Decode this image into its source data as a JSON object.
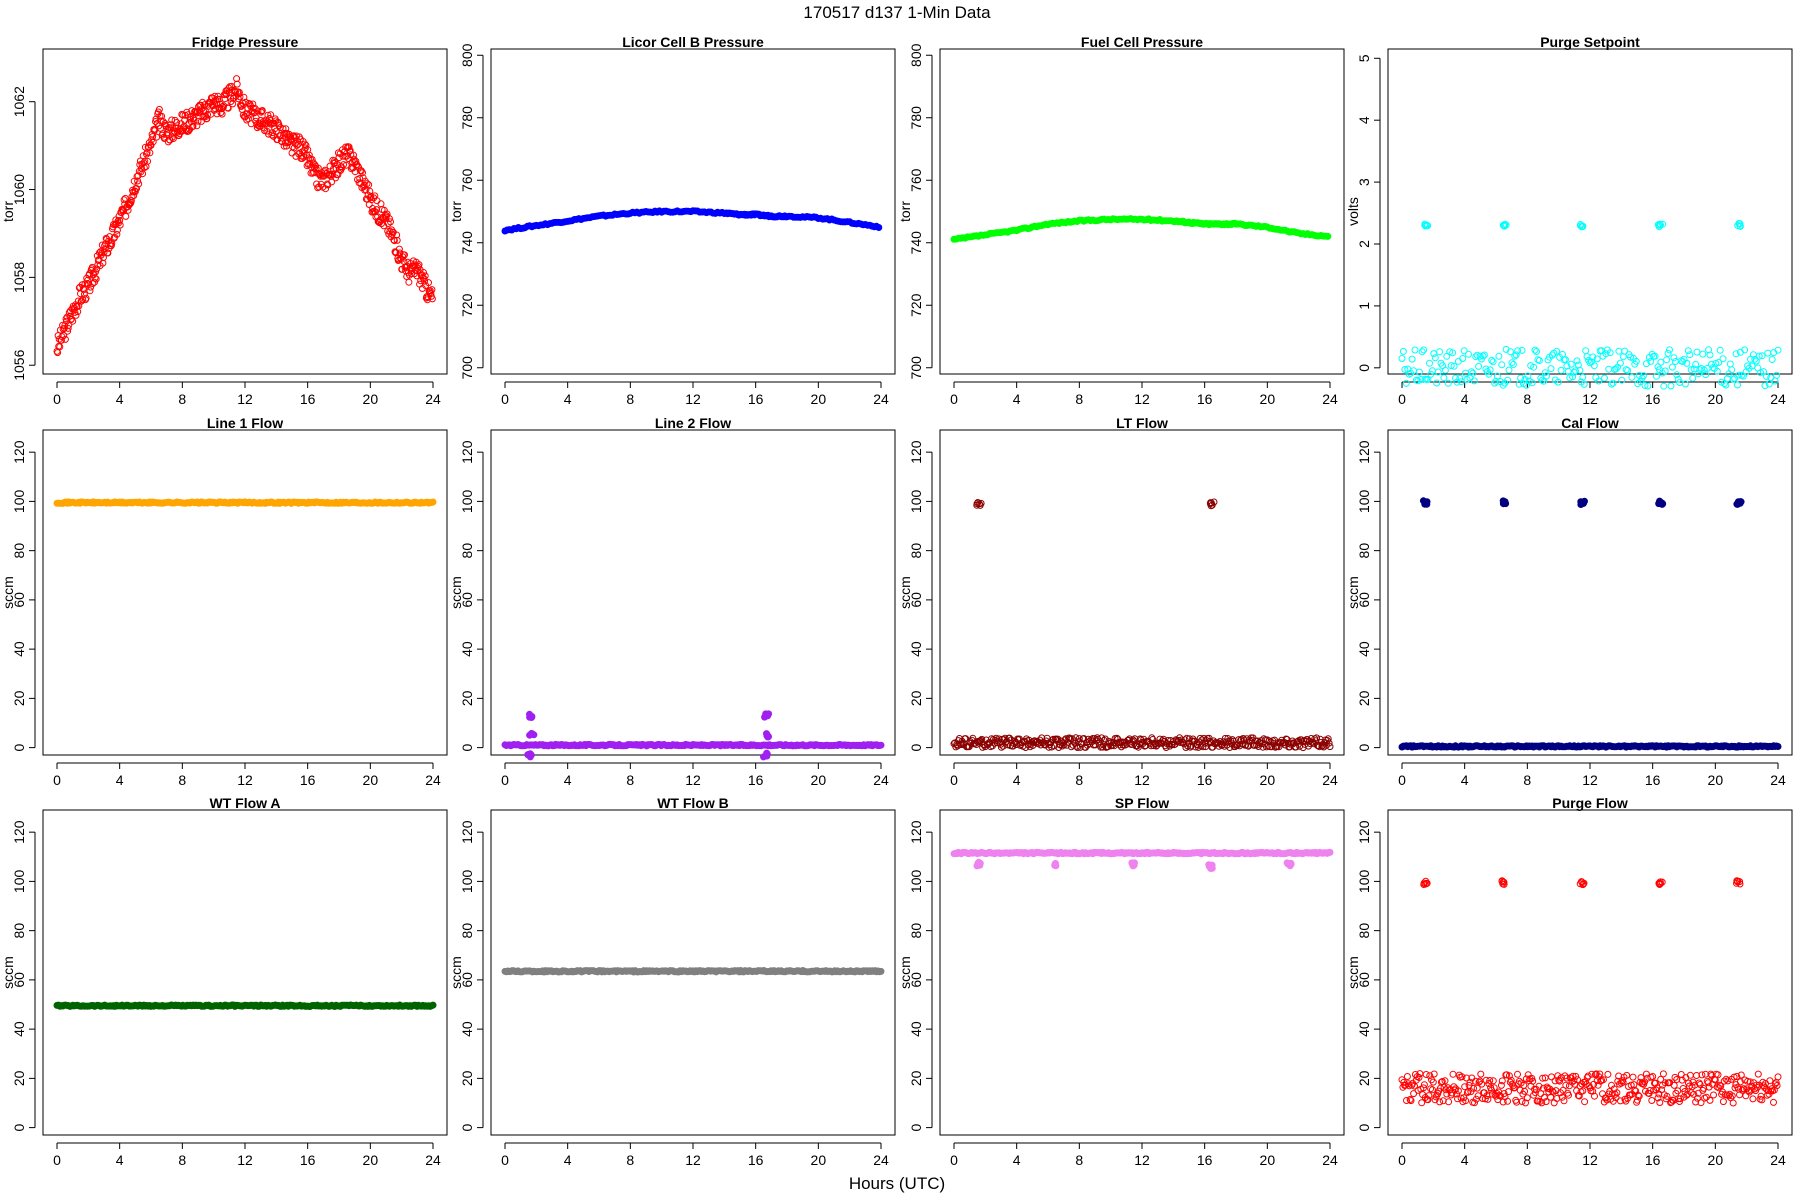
{
  "figure": {
    "title": "170517   d137   1-Min Data",
    "xlabel": "Hours (UTC)"
  },
  "chart_data": [
    {
      "type": "scatter",
      "title": "Fridge Pressure",
      "ylabel": "torr",
      "color": "#ff0000",
      "filled": false,
      "xlim": [
        0,
        24
      ],
      "ylim": [
        1055.8,
        1063.2
      ],
      "xticks": [
        0,
        4,
        8,
        12,
        16,
        20,
        24
      ],
      "yticks": [
        1056,
        1058,
        1060,
        1062
      ],
      "series": [
        {
          "x": [
            0,
            0.5,
            1,
            1.5,
            2,
            2.5,
            3,
            3.5,
            4,
            4.5,
            5,
            5.5,
            6,
            6.5,
            7,
            7.5,
            8,
            8.5,
            9,
            9.5,
            10,
            10.5,
            11,
            11.5,
            12,
            12.5,
            13,
            13.5,
            14,
            14.5,
            15,
            15.5,
            16,
            16.5,
            17,
            17.5,
            18,
            18.5,
            19,
            19.5,
            20,
            20.5,
            21,
            21.5,
            22,
            22.5,
            23,
            23.5,
            24
          ],
          "y": [
            1056.4,
            1056.8,
            1057.2,
            1057.6,
            1057.8,
            1058.2,
            1058.6,
            1058.9,
            1059.3,
            1059.7,
            1060.2,
            1060.6,
            1061.0,
            1061.6,
            1061.3,
            1061.4,
            1061.5,
            1061.6,
            1061.7,
            1061.8,
            1062.0,
            1061.9,
            1062.1,
            1062.3,
            1061.8,
            1061.7,
            1061.6,
            1061.5,
            1061.4,
            1061.2,
            1061.0,
            1061.0,
            1060.7,
            1060.3,
            1060.2,
            1060.4,
            1060.6,
            1060.8,
            1060.6,
            1060.2,
            1059.8,
            1059.5,
            1059.3,
            1058.9,
            1058.4,
            1058.1,
            1058.2,
            1057.8,
            1057.5
          ]
        }
      ]
    },
    {
      "type": "scatter",
      "title": "Licor Cell B Pressure",
      "ylabel": "torr",
      "color": "#0000ff",
      "filled": true,
      "xlim": [
        0,
        24
      ],
      "ylim": [
        698,
        802
      ],
      "xticks": [
        0,
        4,
        8,
        12,
        16,
        20,
        24
      ],
      "yticks": [
        700,
        720,
        740,
        760,
        780,
        800
      ],
      "series": [
        {
          "x": [
            0,
            2,
            4,
            6,
            8,
            10,
            12,
            14,
            15,
            16,
            17,
            18,
            20,
            22,
            24
          ],
          "y": [
            744,
            745.5,
            747,
            748.5,
            749.5,
            750,
            750,
            749.5,
            749,
            749,
            748.5,
            748.5,
            748,
            746.5,
            745
          ]
        }
      ]
    },
    {
      "type": "scatter",
      "title": "Fuel Cell Pressure",
      "ylabel": "torr",
      "color": "#00ff00",
      "filled": true,
      "xlim": [
        0,
        24
      ],
      "ylim": [
        698,
        802
      ],
      "xticks": [
        0,
        4,
        8,
        12,
        16,
        20,
        24
      ],
      "yticks": [
        700,
        720,
        740,
        760,
        780,
        800
      ],
      "series": [
        {
          "x": [
            0,
            2,
            4,
            6,
            8,
            10,
            12,
            14,
            15,
            16,
            17,
            18,
            20,
            22,
            24
          ],
          "y": [
            741,
            742.5,
            744,
            746,
            747,
            747.5,
            747.5,
            747,
            746.5,
            746,
            746,
            746,
            745,
            743,
            742
          ]
        }
      ]
    },
    {
      "type": "scatter",
      "title": "Purge Setpoint",
      "ylabel": "volts",
      "color": "#00ffff",
      "filled": false,
      "xlim": [
        0,
        24
      ],
      "ylim": [
        -0.1,
        5.15
      ],
      "xticks": [
        0,
        4,
        8,
        12,
        16,
        20,
        24
      ],
      "yticks": [
        0,
        1,
        2,
        3,
        4,
        5
      ],
      "series": [
        {
          "x": [
            1.5,
            6.5,
            11.5,
            16.5,
            21.5
          ],
          "y": [
            2.3,
            2.3,
            2.3,
            2.3,
            2.3
          ]
        },
        {
          "x": [
            0,
            24
          ],
          "y": [
            0,
            0
          ],
          "baseline": true
        }
      ]
    },
    {
      "type": "scatter",
      "title": "Line 1 Flow",
      "ylabel": "sccm",
      "color": "#ffa500",
      "filled": true,
      "xlim": [
        0,
        24
      ],
      "ylim": [
        -3,
        129
      ],
      "xticks": [
        0,
        4,
        8,
        12,
        16,
        20,
        24
      ],
      "yticks": [
        0,
        20,
        40,
        60,
        80,
        100,
        120
      ],
      "series": [
        {
          "x": [
            0,
            24
          ],
          "y": [
            99.5,
            99.5
          ],
          "baseline": true
        }
      ]
    },
    {
      "type": "scatter",
      "title": "Line 2 Flow",
      "ylabel": "sccm",
      "color": "#a020f0",
      "filled": true,
      "xlim": [
        0,
        24
      ],
      "ylim": [
        -3,
        129
      ],
      "xticks": [
        0,
        4,
        8,
        12,
        16,
        20,
        24
      ],
      "yticks": [
        0,
        20,
        40,
        60,
        80,
        100,
        120
      ],
      "series": [
        {
          "x": [
            0,
            24
          ],
          "y": [
            1,
            1
          ],
          "baseline": true
        },
        {
          "x": [
            1.7,
            1.7,
            1.6,
            16.7,
            16.8,
            16.6
          ],
          "y": [
            13,
            5,
            -3,
            13,
            5,
            -3
          ]
        }
      ]
    },
    {
      "type": "scatter",
      "title": "LT Flow",
      "ylabel": "sccm",
      "color": "#8b0000",
      "filled": false,
      "xlim": [
        0,
        24
      ],
      "ylim": [
        -3,
        129
      ],
      "xticks": [
        0,
        4,
        8,
        12,
        16,
        20,
        24
      ],
      "yticks": [
        0,
        20,
        40,
        60,
        80,
        100,
        120
      ],
      "series": [
        {
          "x": [
            0,
            24
          ],
          "y": [
            1.5,
            1.5
          ],
          "baseline": true,
          "band": [
            0,
            4
          ]
        },
        {
          "x": [
            1.6,
            16.5
          ],
          "y": [
            99,
            99
          ]
        }
      ]
    },
    {
      "type": "scatter",
      "title": "Cal Flow",
      "ylabel": "sccm",
      "color": "#000080",
      "filled": true,
      "xlim": [
        0,
        24
      ],
      "ylim": [
        -3,
        129
      ],
      "xticks": [
        0,
        4,
        8,
        12,
        16,
        20,
        24
      ],
      "yticks": [
        0,
        20,
        40,
        60,
        80,
        100,
        120
      ],
      "series": [
        {
          "x": [
            0,
            24
          ],
          "y": [
            0.5,
            0.5
          ],
          "baseline": true
        },
        {
          "x": [
            1.5,
            6.5,
            11.5,
            16.5,
            21.5
          ],
          "y": [
            99.5,
            99.5,
            99.5,
            99.5,
            99.5
          ]
        }
      ]
    },
    {
      "type": "scatter",
      "title": "WT Flow A",
      "ylabel": "sccm",
      "color": "#006400",
      "filled": true,
      "xlim": [
        0,
        24
      ],
      "ylim": [
        -3,
        129
      ],
      "xticks": [
        0,
        4,
        8,
        12,
        16,
        20,
        24
      ],
      "yticks": [
        0,
        20,
        40,
        60,
        80,
        100,
        120
      ],
      "series": [
        {
          "x": [
            0,
            24
          ],
          "y": [
            49.5,
            49.5
          ],
          "baseline": true
        }
      ]
    },
    {
      "type": "scatter",
      "title": "WT Flow B",
      "ylabel": "sccm",
      "color": "#808080",
      "filled": true,
      "xlim": [
        0,
        24
      ],
      "ylim": [
        -3,
        129
      ],
      "xticks": [
        0,
        4,
        8,
        12,
        16,
        20,
        24
      ],
      "yticks": [
        0,
        20,
        40,
        60,
        80,
        100,
        120
      ],
      "series": [
        {
          "x": [
            0,
            24
          ],
          "y": [
            63.5,
            63.5
          ],
          "baseline": true
        }
      ]
    },
    {
      "type": "scatter",
      "title": "SP Flow",
      "ylabel": "sccm",
      "color": "#ee82ee",
      "filled": true,
      "xlim": [
        0,
        24
      ],
      "ylim": [
        -3,
        129
      ],
      "xticks": [
        0,
        4,
        8,
        12,
        16,
        20,
        24
      ],
      "yticks": [
        0,
        20,
        40,
        60,
        80,
        100,
        120
      ],
      "series": [
        {
          "x": [
            0,
            24
          ],
          "y": [
            111.5,
            111.5
          ],
          "baseline": true
        },
        {
          "x": [
            1.6,
            6.4,
            11.4,
            16.4,
            21.4
          ],
          "y": [
            107,
            107,
            107,
            106,
            107
          ]
        }
      ]
    },
    {
      "type": "scatter",
      "title": "Purge Flow",
      "ylabel": "sccm",
      "color": "#ff0000",
      "filled": false,
      "xlim": [
        0,
        24
      ],
      "ylim": [
        -3,
        129
      ],
      "xticks": [
        0,
        4,
        8,
        12,
        16,
        20,
        24
      ],
      "yticks": [
        0,
        20,
        40,
        60,
        80,
        100,
        120
      ],
      "series": [
        {
          "x": [
            0,
            24
          ],
          "y": [
            16,
            16
          ],
          "baseline": true,
          "band": [
            10,
            22
          ]
        },
        {
          "x": [
            1.5,
            6.4,
            11.5,
            16.5,
            21.5
          ],
          "y": [
            99.5,
            99.5,
            99.5,
            99.5,
            99.5
          ]
        }
      ]
    }
  ]
}
